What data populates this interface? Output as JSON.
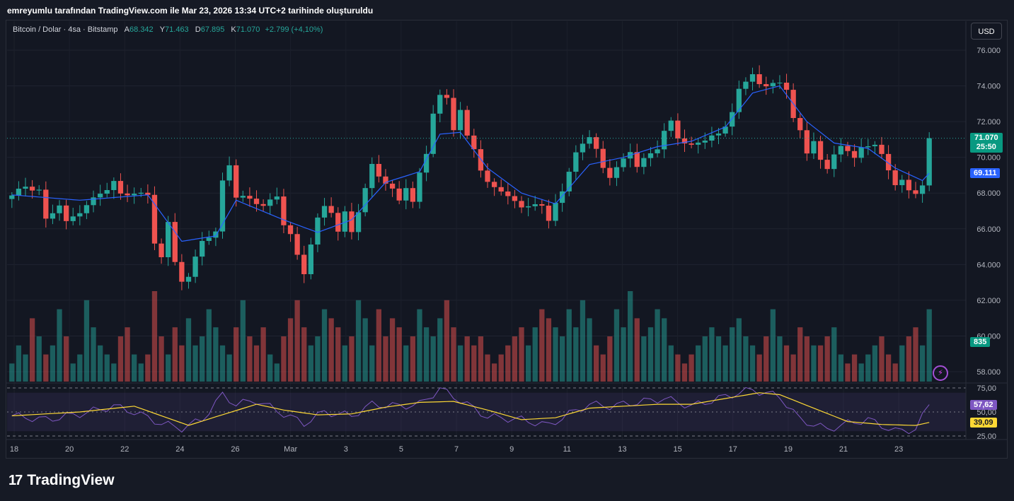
{
  "header": {
    "caption": "emreyumlu tarafından TradingView.com ile Mar 23, 2026 13:34 UTC+2 tarihinde oluşturuldu"
  },
  "legend": {
    "symbol": "Bitcoin / Dolar · 4sa · Bitstamp",
    "open_label": "A",
    "open": "68.342",
    "high_label": "Y",
    "high": "71.463",
    "low_label": "D",
    "low": "67.895",
    "close_label": "K",
    "close": "71.070",
    "change": "+2.799 (+4,10%)"
  },
  "currency_button": "USD",
  "price_tags": {
    "last": "71.070",
    "countdown": "25:50",
    "ma": "69.111",
    "volume": "835"
  },
  "rsi_tags": {
    "rsi": "57,62",
    "rsi_ma": "39,09"
  },
  "colors": {
    "up": "#26a69a",
    "down": "#ef5350",
    "ma": "#2962ff",
    "rsi": "#7e57c2",
    "rsi_ma": "#fdd835",
    "background": "#131722"
  },
  "chart_data": {
    "type": "candlestick",
    "title": "Bitcoin / Dolar · 4sa · Bitstamp",
    "price_axis": {
      "ticks": [
        "76.000",
        "74.000",
        "72.000",
        "70.000",
        "68.000",
        "66.000",
        "64.000",
        "62.000",
        "60.000",
        "58.000"
      ],
      "range": [
        57200,
        76800
      ]
    },
    "time_axis": {
      "ticks": [
        "18",
        "20",
        "22",
        "24",
        "26",
        "Mar",
        "3",
        "5",
        "7",
        "9",
        "11",
        "13",
        "15",
        "17",
        "19",
        "21",
        "23"
      ]
    },
    "rsi_axis": {
      "ticks": [
        "75,00",
        "50,00",
        "25,00"
      ],
      "range": [
        20,
        80
      ],
      "overbought": 70,
      "oversold": 30
    },
    "price_path": [
      [
        0,
        67800
      ],
      [
        2,
        68400
      ],
      [
        4,
        68200
      ],
      [
        5,
        66500
      ],
      [
        7,
        67300
      ],
      [
        8,
        66300
      ],
      [
        11,
        67400
      ],
      [
        14,
        68200
      ],
      [
        15,
        68600
      ],
      [
        16,
        67900
      ],
      [
        18,
        68100
      ],
      [
        20,
        67800
      ],
      [
        21,
        65200
      ],
      [
        22,
        64400
      ],
      [
        23,
        66300
      ],
      [
        24,
        64200
      ],
      [
        25,
        63200
      ],
      [
        26,
        63300
      ],
      [
        27,
        64300
      ],
      [
        28,
        65300
      ],
      [
        30,
        65800
      ],
      [
        31,
        68700
      ],
      [
        32,
        69700
      ],
      [
        33,
        67800
      ],
      [
        35,
        67600
      ],
      [
        37,
        67300
      ],
      [
        39,
        67900
      ],
      [
        40,
        66300
      ],
      [
        41,
        65600
      ],
      [
        42,
        64400
      ],
      [
        43,
        63500
      ],
      [
        44,
        65200
      ],
      [
        45,
        66600
      ],
      [
        46,
        67300
      ],
      [
        47,
        67000
      ],
      [
        48,
        65800
      ],
      [
        49,
        66800
      ],
      [
        50,
        65800
      ],
      [
        52,
        68300
      ],
      [
        53,
        69600
      ],
      [
        54,
        69000
      ],
      [
        56,
        68100
      ],
      [
        57,
        67500
      ],
      [
        58,
        68400
      ],
      [
        59,
        67600
      ],
      [
        60,
        69100
      ],
      [
        61,
        70200
      ],
      [
        62,
        72500
      ],
      [
        63,
        73400
      ],
      [
        64,
        73200
      ],
      [
        65,
        71600
      ],
      [
        66,
        72800
      ],
      [
        67,
        71200
      ],
      [
        68,
        70400
      ],
      [
        69,
        69300
      ],
      [
        70,
        68600
      ],
      [
        71,
        68200
      ],
      [
        73,
        68000
      ],
      [
        74,
        67600
      ],
      [
        75,
        67100
      ],
      [
        77,
        67400
      ],
      [
        78,
        67200
      ],
      [
        79,
        66400
      ],
      [
        80,
        67600
      ],
      [
        81,
        68200
      ],
      [
        82,
        69100
      ],
      [
        83,
        70200
      ],
      [
        84,
        70800
      ],
      [
        85,
        71100
      ],
      [
        86,
        70400
      ],
      [
        87,
        69500
      ],
      [
        88,
        69000
      ],
      [
        90,
        69800
      ],
      [
        91,
        70300
      ],
      [
        92,
        69500
      ],
      [
        93,
        69900
      ],
      [
        95,
        70600
      ],
      [
        96,
        71500
      ],
      [
        97,
        71900
      ],
      [
        98,
        71000
      ],
      [
        100,
        70700
      ],
      [
        101,
        70800
      ],
      [
        103,
        71300
      ],
      [
        104,
        71200
      ],
      [
        105,
        71600
      ],
      [
        106,
        72600
      ],
      [
        107,
        73900
      ],
      [
        108,
        74200
      ],
      [
        109,
        74700
      ],
      [
        110,
        74200
      ],
      [
        111,
        73900
      ],
      [
        112,
        74000
      ],
      [
        113,
        74200
      ],
      [
        114,
        73900
      ],
      [
        115,
        72200
      ],
      [
        116,
        71500
      ],
      [
        117,
        70300
      ],
      [
        118,
        70900
      ],
      [
        119,
        69700
      ],
      [
        120,
        69300
      ],
      [
        121,
        70300
      ],
      [
        122,
        70700
      ],
      [
        123,
        70300
      ],
      [
        124,
        70000
      ],
      [
        125,
        70600
      ],
      [
        126,
        70500
      ],
      [
        127,
        70600
      ],
      [
        128,
        70300
      ],
      [
        129,
        69400
      ],
      [
        130,
        68400
      ],
      [
        131,
        68700
      ],
      [
        132,
        68200
      ],
      [
        133,
        67900
      ],
      [
        134,
        68300
      ],
      [
        135,
        71070
      ]
    ],
    "moving_average": [
      [
        0,
        67900
      ],
      [
        10,
        67600
      ],
      [
        20,
        67900
      ],
      [
        25,
        65300
      ],
      [
        30,
        65600
      ],
      [
        33,
        67600
      ],
      [
        40,
        66500
      ],
      [
        45,
        65800
      ],
      [
        50,
        66500
      ],
      [
        55,
        68600
      ],
      [
        60,
        69200
      ],
      [
        63,
        71300
      ],
      [
        66,
        71400
      ],
      [
        70,
        69400
      ],
      [
        75,
        68000
      ],
      [
        80,
        67400
      ],
      [
        85,
        69600
      ],
      [
        90,
        70000
      ],
      [
        95,
        70600
      ],
      [
        100,
        70900
      ],
      [
        105,
        71700
      ],
      [
        109,
        73600
      ],
      [
        113,
        74000
      ],
      [
        117,
        72000
      ],
      [
        121,
        70800
      ],
      [
        126,
        70500
      ],
      [
        130,
        69400
      ],
      [
        134,
        68700
      ],
      [
        135,
        69111
      ]
    ],
    "rsi": [
      [
        0,
        46
      ],
      [
        5,
        42
      ],
      [
        10,
        48
      ],
      [
        15,
        56
      ],
      [
        18,
        50
      ],
      [
        22,
        38
      ],
      [
        25,
        33
      ],
      [
        28,
        42
      ],
      [
        31,
        68
      ],
      [
        33,
        58
      ],
      [
        36,
        62
      ],
      [
        40,
        48
      ],
      [
        43,
        38
      ],
      [
        46,
        50
      ],
      [
        50,
        46
      ],
      [
        53,
        58
      ],
      [
        57,
        56
      ],
      [
        60,
        58
      ],
      [
        63,
        74
      ],
      [
        66,
        62
      ],
      [
        70,
        45
      ],
      [
        75,
        42
      ],
      [
        79,
        36
      ],
      [
        82,
        48
      ],
      [
        85,
        58
      ],
      [
        88,
        56
      ],
      [
        92,
        60
      ],
      [
        96,
        64
      ],
      [
        100,
        56
      ],
      [
        104,
        64
      ],
      [
        107,
        70
      ],
      [
        109,
        73
      ],
      [
        113,
        66
      ],
      [
        116,
        42
      ],
      [
        120,
        32
      ],
      [
        123,
        38
      ],
      [
        126,
        42
      ],
      [
        130,
        30
      ],
      [
        133,
        32
      ],
      [
        135,
        57.62
      ]
    ],
    "rsi_ma": [
      [
        0,
        46
      ],
      [
        10,
        50
      ],
      [
        18,
        56
      ],
      [
        22,
        46
      ],
      [
        26,
        36
      ],
      [
        30,
        45
      ],
      [
        36,
        58
      ],
      [
        40,
        52
      ],
      [
        45,
        47
      ],
      [
        50,
        48
      ],
      [
        55,
        55
      ],
      [
        60,
        60
      ],
      [
        65,
        61
      ],
      [
        70,
        52
      ],
      [
        75,
        42
      ],
      [
        80,
        44
      ],
      [
        85,
        54
      ],
      [
        90,
        56
      ],
      [
        95,
        58
      ],
      [
        100,
        58
      ],
      [
        105,
        64
      ],
      [
        110,
        70
      ],
      [
        113,
        68
      ],
      [
        118,
        54
      ],
      [
        123,
        40
      ],
      [
        128,
        37
      ],
      [
        133,
        36
      ],
      [
        135,
        39.09
      ]
    ],
    "volume_units": [
      2,
      4,
      3,
      7,
      5,
      3,
      4,
      8,
      5,
      2,
      3,
      9,
      6,
      4,
      3,
      2,
      5,
      6,
      3,
      2,
      3,
      10,
      5,
      3,
      6,
      4,
      7,
      4,
      5,
      8,
      6,
      4,
      3,
      6,
      9,
      5,
      4,
      6,
      3,
      2,
      5,
      7,
      9,
      6,
      4,
      5,
      8,
      7,
      6,
      4,
      5,
      9,
      7,
      4,
      8,
      5,
      7,
      6,
      4,
      5,
      8,
      6,
      5,
      7,
      9,
      6,
      4,
      5,
      4,
      5,
      3,
      2,
      3,
      4,
      5,
      6,
      4,
      6,
      8,
      7,
      6,
      5,
      8,
      6,
      9,
      7,
      4,
      3,
      5,
      8,
      6,
      10,
      7,
      5,
      6,
      8,
      7,
      4,
      3,
      2,
      3,
      4,
      5,
      6,
      5,
      4,
      6,
      7,
      5,
      4,
      3,
      5,
      8,
      5,
      4,
      3,
      6,
      5,
      4,
      4,
      5,
      6,
      3,
      2,
      3,
      2,
      3,
      4,
      5,
      3,
      2,
      4,
      5,
      6,
      4,
      8
    ]
  }
}
